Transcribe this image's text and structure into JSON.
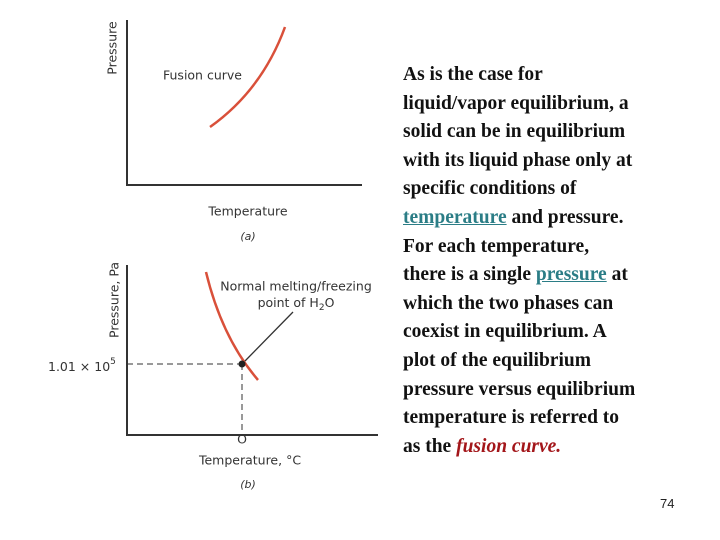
{
  "diagram_a": {
    "y_label": "Pressure",
    "curve_label": "Fusion curve",
    "x_label": "Temperature",
    "caption": "(a)"
  },
  "diagram_b": {
    "y_label": "Pressure, Pa",
    "point_label_line1": "Normal melting/freezing",
    "point_label_line2": {
      "before": "point of H",
      "subscript": "2",
      "after": "O"
    },
    "pressure_label": {
      "mantissa": "1.01 × 10",
      "exponent": "5"
    },
    "origin_label": "O",
    "x_label": "Temperature, °C",
    "caption": "(b)"
  },
  "text": {
    "lines": [
      [
        "As is the case for"
      ],
      [
        "liquid/vapor equilibrium, a"
      ],
      [
        "solid can be in equilibrium"
      ],
      [
        "with its liquid phase only at"
      ],
      [
        "specific conditions of"
      ],
      [
        {
          "text": "temperature",
          "kind": "link"
        },
        " and pressure."
      ],
      [
        "For each temperature,"
      ],
      [
        "there is a single ",
        {
          "text": "pressure",
          "kind": "link"
        },
        " at"
      ],
      [
        "which the two phases can"
      ],
      [
        "coexist in equilibrium. A"
      ],
      [
        "plot of the equilibrium"
      ],
      [
        "pressure versus equilibrium"
      ],
      [
        "temperature is referred to"
      ],
      [
        "as the ",
        {
          "text": "fusion curve.",
          "kind": "emphasis"
        }
      ]
    ]
  },
  "page_number": "74"
}
